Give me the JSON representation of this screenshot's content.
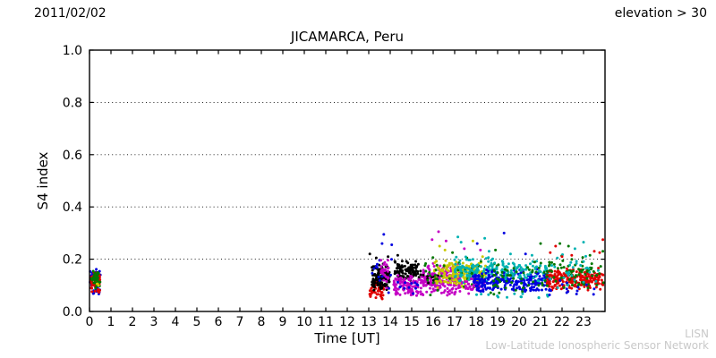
{
  "header": {
    "date": "2011/02/02",
    "elevation_filter": "elevation > 30"
  },
  "watermark": {
    "line1": "LISN",
    "line2": "Low-Latitude Ionospheric Sensor Network",
    "color": "#c9c9c9"
  },
  "chart_data": {
    "type": "scatter",
    "title": "JICAMARCA, Peru",
    "xlabel": "Time [UT]",
    "ylabel": "S4 index",
    "xlim": [
      0,
      24
    ],
    "ylim": [
      0.0,
      1.0
    ],
    "xticks": [
      0,
      1,
      2,
      3,
      4,
      5,
      6,
      7,
      8,
      9,
      10,
      11,
      12,
      13,
      14,
      15,
      16,
      17,
      18,
      19,
      20,
      21,
      22,
      23
    ],
    "yticks": [
      {
        "value": 0.0,
        "label": "0.0"
      },
      {
        "value": 0.2,
        "label": "0.2"
      },
      {
        "value": 0.4,
        "label": "0.4"
      },
      {
        "value": 0.6,
        "label": "0.6"
      },
      {
        "value": 0.8,
        "label": "0.8"
      },
      {
        "value": 1.0,
        "label": "1.0"
      }
    ],
    "grid": {
      "y_values": [
        0.2,
        0.4,
        0.6,
        0.8
      ],
      "style": "dotted",
      "color": "#000000"
    },
    "palette": {
      "red": "#e00000",
      "blue": "#0000e0",
      "green": "#007700",
      "black": "#000000",
      "magenta": "#c400c4",
      "yellow": "#c9c900",
      "cyan": "#00b2b2"
    },
    "marker": {
      "shape": "circle",
      "radius_px": 1.5
    },
    "clusters": [
      {
        "color": "blue",
        "t": [
          0.02,
          0.52
        ],
        "s4": [
          0.055,
          0.165
        ],
        "n": 40
      },
      {
        "color": "red",
        "t": [
          0.03,
          0.5
        ],
        "s4": [
          0.07,
          0.155
        ],
        "n": 65
      },
      {
        "color": "green",
        "t": [
          0.08,
          0.5
        ],
        "s4": [
          0.08,
          0.16
        ],
        "n": 35
      },
      {
        "color": "yellow",
        "t": [
          0.33,
          0.47
        ],
        "s4": [
          0.095,
          0.115
        ],
        "n": 3
      },
      {
        "color": "red",
        "t": [
          13.05,
          13.72
        ],
        "s4": [
          0.04,
          0.115
        ],
        "n": 45
      },
      {
        "color": "black",
        "t": [
          13.15,
          13.97
        ],
        "s4": [
          0.075,
          0.185
        ],
        "n": 115
      },
      {
        "color": "blue",
        "t": [
          13.05,
          14.15
        ],
        "s4": [
          0.05,
          0.22
        ],
        "n": 14
      },
      {
        "color": "magenta",
        "t": [
          13.55,
          13.92
        ],
        "s4": [
          0.08,
          0.235
        ],
        "n": 30
      },
      {
        "color": "black",
        "t": [
          14.2,
          15.35
        ],
        "s4": [
          0.115,
          0.2
        ],
        "n": 110
      },
      {
        "color": "magenta",
        "t": [
          14.15,
          15.45
        ],
        "s4": [
          0.05,
          0.155
        ],
        "n": 95
      },
      {
        "color": "blue",
        "t": [
          14.25,
          15.3
        ],
        "s4": [
          0.06,
          0.13
        ],
        "n": 12
      },
      {
        "color": "magenta",
        "t": [
          15.45,
          17.35
        ],
        "s4": [
          0.06,
          0.185
        ],
        "n": 210
      },
      {
        "color": "black",
        "t": [
          15.4,
          16.25
        ],
        "s4": [
          0.1,
          0.165
        ],
        "n": 14
      },
      {
        "color": "yellow",
        "t": [
          16.05,
          18.45
        ],
        "s4": [
          0.09,
          0.205
        ],
        "n": 175
      },
      {
        "color": "green",
        "t": [
          15.55,
          19.0
        ],
        "s4": [
          0.06,
          0.22
        ],
        "n": 45
      },
      {
        "color": "cyan",
        "t": [
          17.0,
          19.4
        ],
        "s4": [
          0.1,
          0.215
        ],
        "n": 125
      },
      {
        "color": "magenta",
        "t": [
          17.35,
          18.4
        ],
        "s4": [
          0.06,
          0.14
        ],
        "n": 40
      },
      {
        "color": "blue",
        "t": [
          17.85,
          21.45
        ],
        "s4": [
          0.07,
          0.165
        ],
        "n": 250
      },
      {
        "color": "cyan",
        "t": [
          19.2,
          21.4
        ],
        "s4": [
          0.11,
          0.2
        ],
        "n": 70
      },
      {
        "color": "green",
        "t": [
          18.8,
          21.5
        ],
        "s4": [
          0.06,
          0.2
        ],
        "n": 55
      },
      {
        "color": "cyan",
        "t": [
          18.0,
          21.5
        ],
        "s4": [
          0.04,
          0.08
        ],
        "n": 14
      },
      {
        "color": "red",
        "t": [
          21.3,
          23.98
        ],
        "s4": [
          0.075,
          0.17
        ],
        "n": 215
      },
      {
        "color": "green",
        "t": [
          21.3,
          23.95
        ],
        "s4": [
          0.07,
          0.22
        ],
        "n": 70
      },
      {
        "color": "cyan",
        "t": [
          21.4,
          23.9
        ],
        "s4": [
          0.05,
          0.23
        ],
        "n": 30
      },
      {
        "color": "blue",
        "t": [
          21.4,
          23.9
        ],
        "s4": [
          0.05,
          0.13
        ],
        "n": 15
      }
    ],
    "outliers": [
      {
        "t": 13.05,
        "s4": 0.22,
        "color": "black"
      },
      {
        "t": 13.35,
        "s4": 0.205,
        "color": "black"
      },
      {
        "t": 13.9,
        "s4": 0.21,
        "color": "black"
      },
      {
        "t": 14.35,
        "s4": 0.215,
        "color": "black"
      },
      {
        "t": 13.62,
        "s4": 0.26,
        "color": "blue"
      },
      {
        "t": 13.7,
        "s4": 0.295,
        "color": "blue"
      },
      {
        "t": 14.07,
        "s4": 0.255,
        "color": "blue"
      },
      {
        "t": 15.95,
        "s4": 0.275,
        "color": "magenta"
      },
      {
        "t": 16.25,
        "s4": 0.305,
        "color": "magenta"
      },
      {
        "t": 16.6,
        "s4": 0.27,
        "color": "magenta"
      },
      {
        "t": 17.45,
        "s4": 0.24,
        "color": "magenta"
      },
      {
        "t": 18.2,
        "s4": 0.235,
        "color": "magenta"
      },
      {
        "t": 16.3,
        "s4": 0.25,
        "color": "yellow"
      },
      {
        "t": 16.55,
        "s4": 0.235,
        "color": "yellow"
      },
      {
        "t": 17.85,
        "s4": 0.27,
        "color": "yellow"
      },
      {
        "t": 18.3,
        "s4": 0.21,
        "color": "yellow"
      },
      {
        "t": 17.15,
        "s4": 0.285,
        "color": "cyan"
      },
      {
        "t": 17.3,
        "s4": 0.265,
        "color": "cyan"
      },
      {
        "t": 18.4,
        "s4": 0.28,
        "color": "cyan"
      },
      {
        "t": 18.6,
        "s4": 0.23,
        "color": "cyan"
      },
      {
        "t": 19.6,
        "s4": 0.22,
        "color": "cyan"
      },
      {
        "t": 20.6,
        "s4": 0.215,
        "color": "cyan"
      },
      {
        "t": 22.6,
        "s4": 0.24,
        "color": "cyan"
      },
      {
        "t": 23.0,
        "s4": 0.265,
        "color": "cyan"
      },
      {
        "t": 18.05,
        "s4": 0.26,
        "color": "blue"
      },
      {
        "t": 19.3,
        "s4": 0.3,
        "color": "blue"
      },
      {
        "t": 20.3,
        "s4": 0.22,
        "color": "blue"
      },
      {
        "t": 16.9,
        "s4": 0.225,
        "color": "green"
      },
      {
        "t": 18.9,
        "s4": 0.235,
        "color": "green"
      },
      {
        "t": 21.0,
        "s4": 0.26,
        "color": "green"
      },
      {
        "t": 21.9,
        "s4": 0.26,
        "color": "green"
      },
      {
        "t": 22.3,
        "s4": 0.25,
        "color": "green"
      },
      {
        "t": 23.3,
        "s4": 0.215,
        "color": "green"
      },
      {
        "t": 23.9,
        "s4": 0.23,
        "color": "green"
      },
      {
        "t": 21.45,
        "s4": 0.225,
        "color": "red"
      },
      {
        "t": 21.7,
        "s4": 0.25,
        "color": "red"
      },
      {
        "t": 22.0,
        "s4": 0.21,
        "color": "red"
      },
      {
        "t": 22.45,
        "s4": 0.215,
        "color": "red"
      },
      {
        "t": 23.5,
        "s4": 0.23,
        "color": "red"
      },
      {
        "t": 23.75,
        "s4": 0.225,
        "color": "red"
      },
      {
        "t": 23.9,
        "s4": 0.275,
        "color": "red"
      }
    ]
  }
}
